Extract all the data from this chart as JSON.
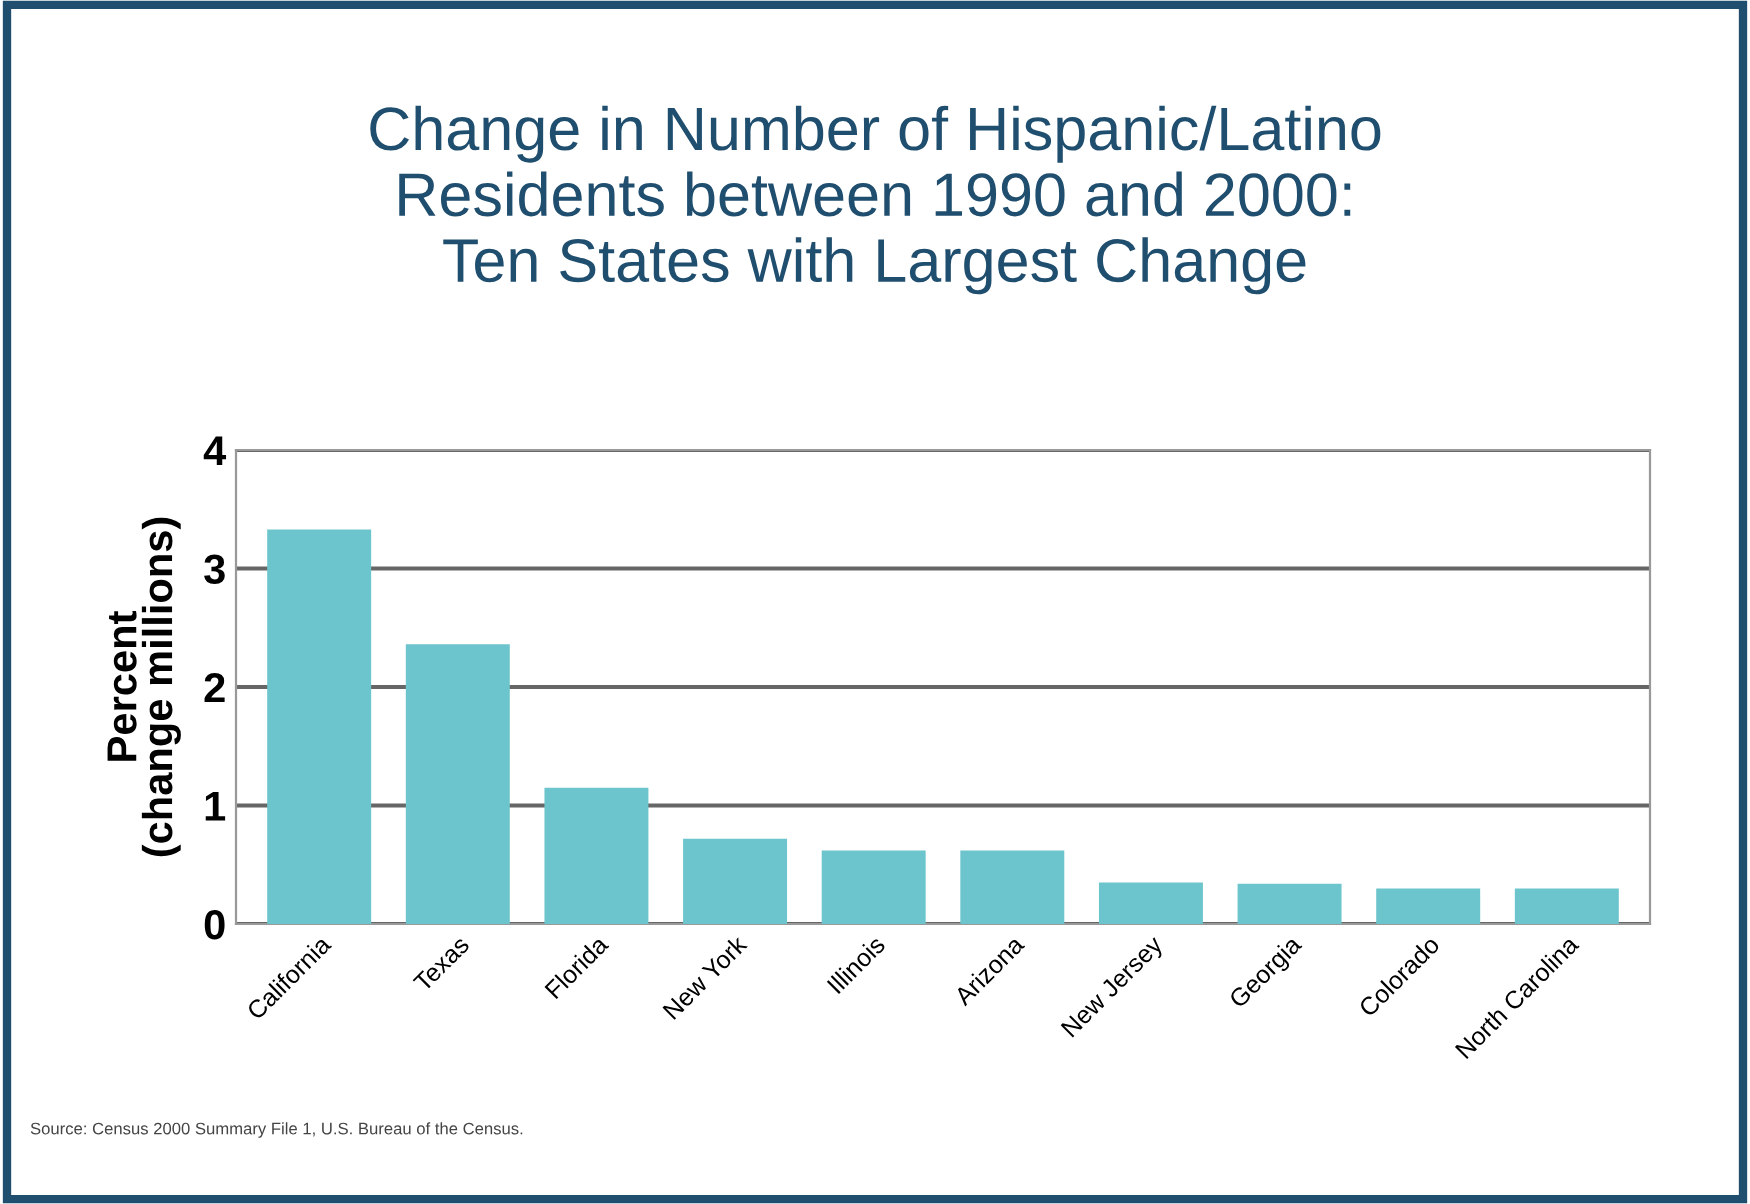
{
  "chart_data": {
    "type": "bar",
    "title": "Change in Number of Hispanic/Latino\nResidents between 1990 and 2000:\nTen States with Largest Change",
    "ylabel": "Percent\n(change millions)",
    "categories": [
      "California",
      "Texas",
      "Florida",
      "New York",
      "Illinois",
      "Arizona",
      "New Jersey",
      "Georgia",
      "Colorado",
      "North Carolina"
    ],
    "values": [
      3.33,
      2.36,
      1.15,
      0.72,
      0.62,
      0.62,
      0.35,
      0.34,
      0.3,
      0.3
    ],
    "color": "#6cc5cc",
    "ylim": [
      0,
      4
    ],
    "yticks": [
      0,
      1,
      2,
      3,
      4
    ],
    "grid": "y",
    "annotations": [
      "Source: Census 2000 Summary File 1, U.S. Bureau of the Census."
    ]
  }
}
